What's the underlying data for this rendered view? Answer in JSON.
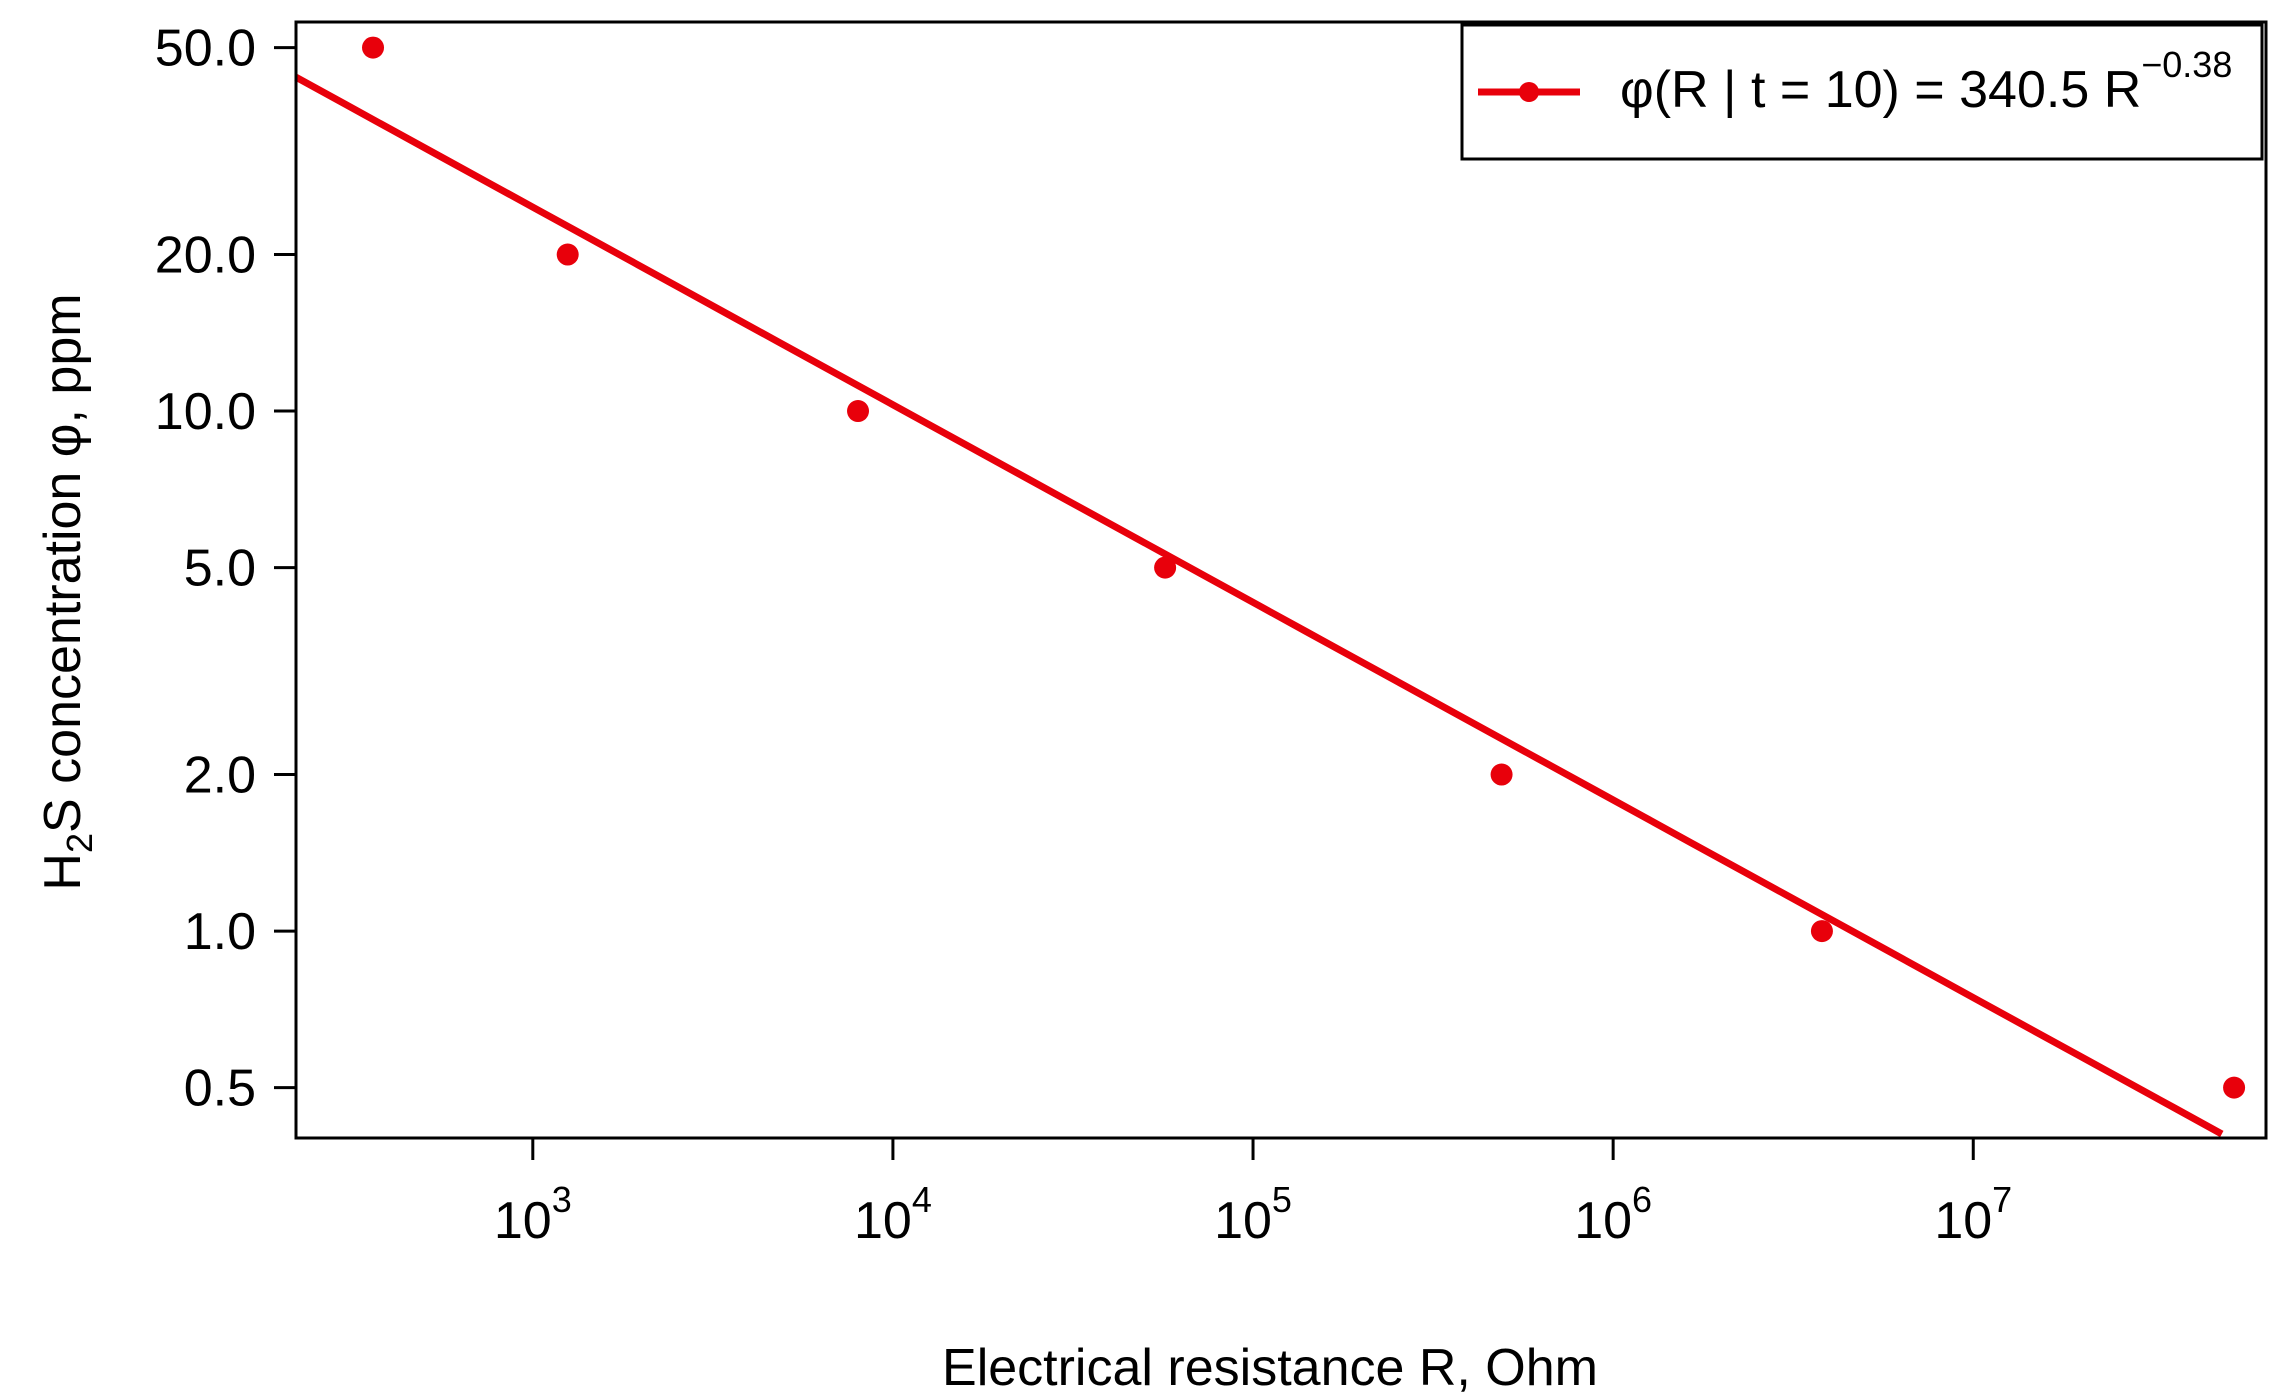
{
  "chart_data": {
    "type": "scatter",
    "title": "",
    "xlabel": "Electrical resistance R, Ohm",
    "ylabel": {
      "prefix": "H",
      "subscript": "2",
      "suffix": "S concentration φ, ppm"
    },
    "x_scale": "log10",
    "y_scale": "log10",
    "xlim": [
      220,
      65000000
    ],
    "ylim": [
      0.4,
      56
    ],
    "x_ticks": [
      {
        "value": 1000,
        "base": "10",
        "exp": "3"
      },
      {
        "value": 10000,
        "base": "10",
        "exp": "4"
      },
      {
        "value": 100000,
        "base": "10",
        "exp": "5"
      },
      {
        "value": 1000000,
        "base": "10",
        "exp": "6"
      },
      {
        "value": 10000000,
        "base": "10",
        "exp": "7"
      }
    ],
    "y_ticks": [
      {
        "value": 0.5,
        "label": "0.5"
      },
      {
        "value": 1,
        "label": "1.0"
      },
      {
        "value": 2,
        "label": "2.0"
      },
      {
        "value": 5,
        "label": "5.0"
      },
      {
        "value": 10,
        "label": "10.0"
      },
      {
        "value": 20,
        "label": "20.0"
      },
      {
        "value": 50,
        "label": "50.0"
      }
    ],
    "series": [
      {
        "name": "φ(R | t = 10) = 340.5 R^−0.38",
        "color": "#e8000b",
        "points": [
          {
            "x": 360,
            "y": 50
          },
          {
            "x": 1250,
            "y": 20
          },
          {
            "x": 8000,
            "y": 10
          },
          {
            "x": 57000,
            "y": 5
          },
          {
            "x": 490000,
            "y": 2
          },
          {
            "x": 3800000,
            "y": 1
          },
          {
            "x": 53000000,
            "y": 0.5
          }
        ],
        "fit": {
          "coefficient": 340.5,
          "exponent": -0.38,
          "x_range": [
            220,
            49000000
          ]
        }
      }
    ],
    "legend": {
      "position": "top-right",
      "prefix": "φ(R | t = 10) = 340.5 R",
      "exponent": "−0.38"
    },
    "grid": false
  }
}
